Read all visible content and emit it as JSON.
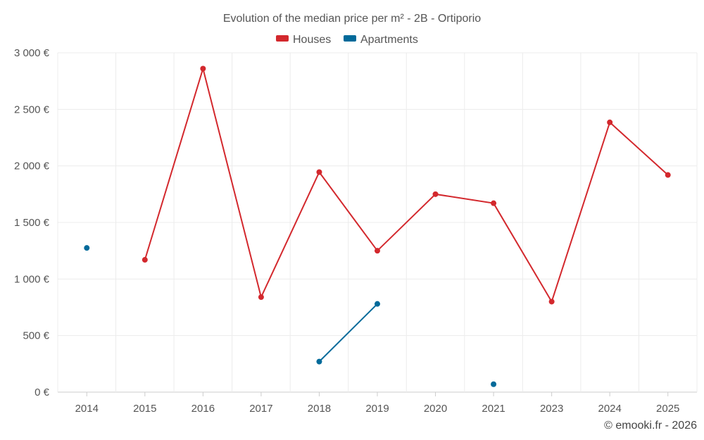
{
  "chart_data": {
    "type": "line",
    "title": "Evolution of the median price per m² - 2B - Ortiporio",
    "categories": [
      "2014",
      "2015",
      "2016",
      "2017",
      "2018",
      "2019",
      "2020",
      "2021",
      "2023",
      "2024",
      "2025"
    ],
    "y_ticks": [
      "0 €",
      "500 €",
      "1 000 €",
      "1 500 €",
      "2 000 €",
      "2 500 €",
      "3 000 €"
    ],
    "ylim": [
      0,
      3000
    ],
    "y_step": 500,
    "grid": true,
    "legend_position": "top-center",
    "series": [
      {
        "name": "Houses",
        "color": "#d3282d",
        "values": [
          null,
          1170,
          2860,
          840,
          1945,
          1250,
          1750,
          1670,
          800,
          2385,
          1920
        ]
      },
      {
        "name": "Apartments",
        "color": "#006a9a",
        "values": [
          1275,
          null,
          null,
          null,
          270,
          780,
          null,
          70,
          null,
          null,
          null
        ]
      }
    ],
    "xlabel": "",
    "ylabel": ""
  },
  "footer": {
    "copyright": "© emooki.fr - 2026"
  }
}
